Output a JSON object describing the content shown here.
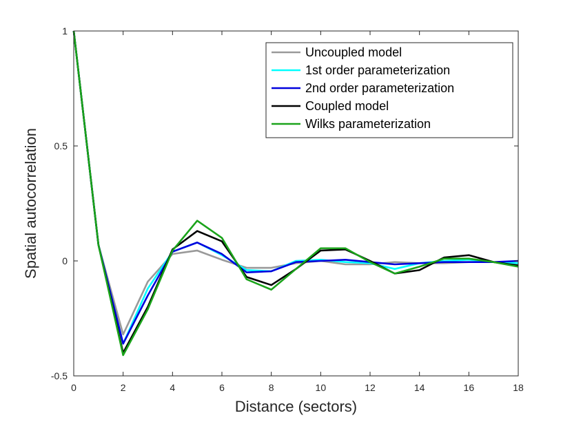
{
  "chart_data": {
    "type": "line",
    "xlabel": "Distance (sectors)",
    "ylabel": "Spatial autocorrelation",
    "xlim": [
      0,
      18
    ],
    "ylim": [
      -0.5,
      1
    ],
    "xticks": [
      0,
      2,
      4,
      6,
      8,
      10,
      12,
      14,
      16,
      18
    ],
    "yticks": [
      -0.5,
      0,
      0.5,
      1
    ],
    "ytick_labels": [
      "-0.5",
      "0",
      "0.5",
      "1"
    ],
    "grid": false,
    "box": true,
    "legend_position": "top-right",
    "x": [
      0,
      1,
      2,
      3,
      4,
      5,
      6,
      7,
      8,
      9,
      10,
      11,
      12,
      13,
      14,
      15,
      16,
      17,
      18
    ],
    "series": [
      {
        "name": "Uncoupled model",
        "color": "#999999",
        "values": [
          1,
          0.07,
          -0.32,
          -0.09,
          0.03,
          0.045,
          0.005,
          -0.03,
          -0.03,
          -0.01,
          0.0,
          -0.015,
          -0.015,
          -0.005,
          -0.01,
          -0.01,
          -0.005,
          -0.005,
          -0.015
        ]
      },
      {
        "name": "1st order parameterization",
        "color": "#00ffff",
        "values": [
          1,
          0.07,
          -0.36,
          -0.12,
          0.04,
          0.08,
          0.025,
          -0.04,
          -0.045,
          0.0,
          0.005,
          -0.005,
          -0.01,
          -0.035,
          -0.01,
          0.0,
          0.005,
          -0.005,
          -0.01
        ]
      },
      {
        "name": "2nd order parameterization",
        "color": "#0000dd",
        "values": [
          1,
          0.07,
          -0.36,
          -0.15,
          0.04,
          0.08,
          0.03,
          -0.05,
          -0.045,
          -0.005,
          0.0,
          0.005,
          -0.005,
          -0.015,
          -0.01,
          -0.005,
          -0.005,
          -0.005,
          0.0
        ]
      },
      {
        "name": "Coupled model",
        "color": "#000000",
        "values": [
          1,
          0.07,
          -0.4,
          -0.2,
          0.05,
          0.13,
          0.085,
          -0.07,
          -0.105,
          -0.035,
          0.045,
          0.05,
          0.0,
          -0.055,
          -0.04,
          0.015,
          0.025,
          -0.005,
          -0.02
        ]
      },
      {
        "name": "Wilks parameterization",
        "color": "#1aa31a",
        "values": [
          1,
          0.07,
          -0.41,
          -0.21,
          0.045,
          0.175,
          0.1,
          -0.08,
          -0.125,
          -0.035,
          0.055,
          0.055,
          -0.005,
          -0.055,
          -0.025,
          0.01,
          0.01,
          -0.005,
          -0.025
        ]
      }
    ]
  }
}
